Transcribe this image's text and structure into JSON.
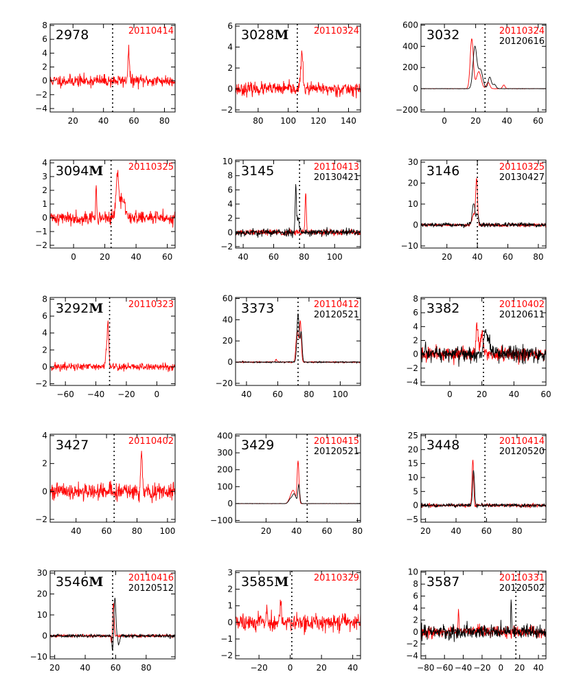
{
  "chart_data": [
    {
      "type": "line",
      "id": "2978",
      "marker": "",
      "dates": [
        {
          "text": "20110414",
          "color": "#ff0000"
        }
      ],
      "xlim": [
        5,
        87
      ],
      "ylim": [
        -4.5,
        8.2
      ],
      "xticks": [
        20,
        40,
        60,
        80
      ],
      "yticks": [
        -4,
        -2,
        0,
        2,
        4,
        6,
        8
      ],
      "vline": 46,
      "series": [
        {
          "color": "#ff0000",
          "baseline": 0,
          "noise": 0.8,
          "seed": 11,
          "peaks": [
            {
              "x": 56.5,
              "h": 4.6,
              "w": 0.5
            }
          ]
        }
      ]
    },
    {
      "type": "line",
      "id": "3028",
      "marker": "M",
      "dates": [
        {
          "text": "20110324",
          "color": "#ff0000"
        }
      ],
      "xlim": [
        65,
        148
      ],
      "ylim": [
        -2.2,
        6.2
      ],
      "xticks": [
        80,
        100,
        120,
        140
      ],
      "yticks": [
        -2,
        0,
        2,
        4,
        6
      ],
      "vline": 106,
      "series": [
        {
          "color": "#ff0000",
          "baseline": 0,
          "noise": 0.55,
          "seed": 23,
          "peaks": [
            {
              "x": 109,
              "h": 3.4,
              "w": 0.7
            }
          ]
        }
      ]
    },
    {
      "type": "line",
      "id": "3032",
      "marker": "",
      "dates": [
        {
          "text": "20110324",
          "color": "#ff0000"
        },
        {
          "text": "20120616",
          "color": "#000000"
        }
      ],
      "xlim": [
        -15,
        65
      ],
      "ylim": [
        -220,
        610
      ],
      "xticks": [
        0,
        20,
        40,
        60
      ],
      "yticks": [
        -200,
        0,
        200,
        400,
        600
      ],
      "vline": 26,
      "series": [
        {
          "color": "#ff0000",
          "baseline": 0,
          "noise": 1.5,
          "seed": 31,
          "peaks": [
            {
              "x": 17.5,
              "h": 470,
              "w": 1.0
            },
            {
              "x": 22,
              "h": 160,
              "w": 1.5
            },
            {
              "x": 28,
              "h": 60,
              "w": 1.0
            },
            {
              "x": 38,
              "h": 35,
              "w": 0.8
            }
          ]
        },
        {
          "color": "#000000",
          "baseline": 0,
          "noise": 1.5,
          "seed": 37,
          "peaks": [
            {
              "x": 19.5,
              "h": 390,
              "w": 1.2
            },
            {
              "x": 23,
              "h": 180,
              "w": 1.5
            },
            {
              "x": 29,
              "h": 110,
              "w": 1.0
            },
            {
              "x": 32,
              "h": 40,
              "w": 1.0
            }
          ]
        }
      ]
    },
    {
      "type": "line",
      "id": "3094",
      "marker": "M",
      "dates": [
        {
          "text": "20110325",
          "color": "#ff0000"
        }
      ],
      "xlim": [
        -15,
        65
      ],
      "ylim": [
        -2.2,
        4.2
      ],
      "xticks": [
        0,
        20,
        40,
        60
      ],
      "yticks": [
        -2,
        -1,
        0,
        1,
        2,
        3,
        4
      ],
      "vline": 24,
      "series": [
        {
          "color": "#ff0000",
          "baseline": 0,
          "noise": 0.45,
          "seed": 41,
          "peaks": [
            {
              "x": 14.5,
              "h": 2.3,
              "w": 0.3
            },
            {
              "x": 28,
              "h": 2.8,
              "w": 0.8
            },
            {
              "x": 31,
              "h": 1.3,
              "w": 2.0
            }
          ]
        }
      ]
    },
    {
      "type": "line",
      "id": "3145",
      "marker": "",
      "dates": [
        {
          "text": "20110413",
          "color": "#ff0000"
        },
        {
          "text": "20130421",
          "color": "#000000"
        }
      ],
      "xlim": [
        35,
        117
      ],
      "ylim": [
        -2.2,
        10.2
      ],
      "xticks": [
        40,
        60,
        80,
        100
      ],
      "yticks": [
        -2,
        0,
        2,
        4,
        6,
        8,
        10
      ],
      "vline": 77,
      "series": [
        {
          "color": "#ff0000",
          "baseline": 0,
          "noise": 0.4,
          "seed": 51,
          "peaks": [
            {
              "x": 81,
              "h": 5.6,
              "w": 0.4
            }
          ]
        },
        {
          "color": "#000000",
          "baseline": 0,
          "noise": 0.5,
          "seed": 53,
          "peaks": [
            {
              "x": 74.5,
              "h": 6.6,
              "w": 0.4
            },
            {
              "x": 76,
              "h": 2.0,
              "w": 0.8
            }
          ]
        }
      ]
    },
    {
      "type": "line",
      "id": "3146",
      "marker": "",
      "dates": [
        {
          "text": "20110325",
          "color": "#ff0000"
        },
        {
          "text": "20130427",
          "color": "#000000"
        }
      ],
      "xlim": [
        3,
        85
      ],
      "ylim": [
        -11,
        31
      ],
      "xticks": [
        20,
        40,
        60,
        80
      ],
      "yticks": [
        -10,
        0,
        10,
        20,
        30
      ],
      "vline": 40,
      "series": [
        {
          "color": "#ff0000",
          "baseline": 0,
          "noise": 0.7,
          "seed": 61,
          "peaks": [
            {
              "x": 39.5,
              "h": 22,
              "w": 0.6
            },
            {
              "x": 37.5,
              "h": 5,
              "w": 1.0
            }
          ]
        },
        {
          "color": "#000000",
          "baseline": 0,
          "noise": 0.9,
          "seed": 67,
          "peaks": [
            {
              "x": 37.5,
              "h": 10,
              "w": 0.9
            },
            {
              "x": 40,
              "h": 5,
              "w": 0.8
            }
          ]
        }
      ]
    },
    {
      "type": "line",
      "id": "3292",
      "marker": "M",
      "dates": [
        {
          "text": "20110323",
          "color": "#ff0000"
        }
      ],
      "xlim": [
        -70,
        12
      ],
      "ylim": [
        -2.2,
        8.2
      ],
      "xticks": [
        -60,
        -40,
        -20,
        0
      ],
      "yticks": [
        -2,
        0,
        2,
        4,
        6,
        8
      ],
      "vline": -31,
      "series": [
        {
          "color": "#ff0000",
          "baseline": 0,
          "noise": 0.45,
          "seed": 71,
          "peaks": [
            {
              "x": -32,
              "h": 5.0,
              "w": 0.5
            },
            {
              "x": -33,
              "h": 2.0,
              "w": 0.6
            }
          ]
        }
      ]
    },
    {
      "type": "line",
      "id": "3373",
      "marker": "",
      "dates": [
        {
          "text": "20110412",
          "color": "#ff0000"
        },
        {
          "text": "20120521",
          "color": "#000000"
        }
      ],
      "xlim": [
        33,
        113
      ],
      "ylim": [
        -22,
        61
      ],
      "xticks": [
        40,
        60,
        80,
        100
      ],
      "yticks": [
        -20,
        0,
        20,
        40,
        60
      ],
      "vline": 73,
      "series": [
        {
          "color": "#ff0000",
          "baseline": 0,
          "noise": 0.5,
          "seed": 81,
          "peaks": [
            {
              "x": 72.5,
              "h": 30,
              "w": 0.8
            },
            {
              "x": 74.5,
              "h": 38,
              "w": 0.6
            },
            {
              "x": 59,
              "h": 2.5,
              "w": 0.5
            }
          ]
        },
        {
          "color": "#000000",
          "baseline": 0,
          "noise": 0.5,
          "seed": 83,
          "peaks": [
            {
              "x": 73,
              "h": 46,
              "w": 0.7
            },
            {
              "x": 75,
              "h": 28,
              "w": 0.6
            }
          ]
        }
      ]
    },
    {
      "type": "line",
      "id": "3382",
      "marker": "",
      "dates": [
        {
          "text": "20110402",
          "color": "#ff0000"
        },
        {
          "text": "20120611",
          "color": "#000000"
        }
      ],
      "xlim": [
        -18,
        60
      ],
      "ylim": [
        -4.5,
        8.2
      ],
      "xticks": [
        0,
        20,
        40,
        60
      ],
      "yticks": [
        -4,
        -2,
        0,
        2,
        4,
        6,
        8
      ],
      "vline": 21,
      "series": [
        {
          "color": "#ff0000",
          "baseline": 0,
          "noise": 0.9,
          "seed": 91,
          "peaks": [
            {
              "x": 17,
              "h": 4.0,
              "w": 0.6
            },
            {
              "x": 20,
              "h": 3.0,
              "w": 0.8
            }
          ]
        },
        {
          "color": "#000000",
          "baseline": 0,
          "noise": 1.1,
          "seed": 97,
          "peaks": [
            {
              "x": 22,
              "h": 2.5,
              "w": 1.0
            },
            {
              "x": 24,
              "h": 1.8,
              "w": 1.5
            }
          ]
        }
      ]
    },
    {
      "type": "line",
      "id": "3427",
      "marker": "",
      "dates": [
        {
          "text": "20110402",
          "color": "#ff0000"
        }
      ],
      "xlim": [
        23,
        105
      ],
      "ylim": [
        -2.2,
        4.1
      ],
      "xticks": [
        40,
        60,
        80,
        100
      ],
      "yticks": [
        -2,
        0,
        2,
        4
      ],
      "vline": 65,
      "series": [
        {
          "color": "#ff0000",
          "baseline": 0,
          "noise": 0.55,
          "seed": 101,
          "peaks": [
            {
              "x": 83,
              "h": 3.0,
              "w": 0.5
            }
          ]
        }
      ]
    },
    {
      "type": "line",
      "id": "3429",
      "marker": "",
      "dates": [
        {
          "text": "20110415",
          "color": "#ff0000"
        },
        {
          "text": "20120521",
          "color": "#000000"
        }
      ],
      "xlim": [
        0,
        82
      ],
      "ylim": [
        -110,
        410
      ],
      "xticks": [
        20,
        40,
        60,
        80
      ],
      "yticks": [
        -100,
        0,
        100,
        200,
        300,
        400
      ],
      "vline": 47,
      "series": [
        {
          "color": "#ff0000",
          "baseline": 0,
          "noise": 0.8,
          "seed": 111,
          "peaks": [
            {
              "x": 41,
              "h": 250,
              "w": 0.6
            },
            {
              "x": 38,
              "h": 70,
              "w": 1.2
            },
            {
              "x": 36,
              "h": 30,
              "w": 1.2
            }
          ]
        },
        {
          "color": "#000000",
          "baseline": 0,
          "noise": 0.8,
          "seed": 113,
          "peaks": [
            {
              "x": 41.5,
              "h": 110,
              "w": 0.6
            },
            {
              "x": 38.5,
              "h": 55,
              "w": 1.2
            },
            {
              "x": 36,
              "h": 25,
              "w": 1.2
            }
          ]
        }
      ]
    },
    {
      "type": "line",
      "id": "3448",
      "marker": "",
      "dates": [
        {
          "text": "20110414",
          "color": "#ff0000"
        },
        {
          "text": "20120520",
          "color": "#000000"
        }
      ],
      "xlim": [
        17,
        99
      ],
      "ylim": [
        -6,
        25.5
      ],
      "xticks": [
        20,
        40,
        60,
        80
      ],
      "yticks": [
        -5,
        0,
        5,
        10,
        15,
        20,
        25
      ],
      "vline": 59,
      "series": [
        {
          "color": "#ff0000",
          "baseline": 0,
          "noise": 0.5,
          "seed": 121,
          "peaks": [
            {
              "x": 51,
              "h": 16.5,
              "w": 0.5
            }
          ]
        },
        {
          "color": "#000000",
          "baseline": 0,
          "noise": 0.6,
          "seed": 127,
          "peaks": [
            {
              "x": 51.5,
              "h": 12.5,
              "w": 0.6
            }
          ]
        }
      ]
    },
    {
      "type": "line",
      "id": "3546",
      "marker": "M",
      "dates": [
        {
          "text": "20110416",
          "color": "#ff0000"
        },
        {
          "text": "20120512",
          "color": "#000000"
        }
      ],
      "xlim": [
        17,
        99
      ],
      "ylim": [
        -11,
        31
      ],
      "xticks": [
        20,
        40,
        60,
        80
      ],
      "yticks": [
        -10,
        0,
        10,
        20,
        30
      ],
      "vline": 58,
      "series": [
        {
          "color": "#ff0000",
          "baseline": 0,
          "noise": 0.6,
          "seed": 131,
          "peaks": [
            {
              "x": 58.5,
              "h": 16,
              "w": 0.5
            },
            {
              "x": 57.5,
              "h": -5,
              "w": 0.4
            }
          ]
        },
        {
          "color": "#000000",
          "baseline": 0,
          "noise": 0.7,
          "seed": 137,
          "peaks": [
            {
              "x": 59.5,
              "h": 18,
              "w": 0.6
            },
            {
              "x": 58,
              "h": -8,
              "w": 0.4
            },
            {
              "x": 62,
              "h": -4,
              "w": 0.6
            }
          ]
        }
      ]
    },
    {
      "type": "line",
      "id": "3585",
      "marker": "M",
      "dates": [
        {
          "text": "20110329",
          "color": "#ff0000"
        }
      ],
      "xlim": [
        -35,
        45
      ],
      "ylim": [
        -2.2,
        3.1
      ],
      "xticks": [
        -20,
        0,
        20,
        40
      ],
      "yticks": [
        -2,
        -1,
        0,
        1,
        2,
        3
      ],
      "vline": 1,
      "series": [
        {
          "color": "#ff0000",
          "baseline": 0,
          "noise": 0.45,
          "seed": 141,
          "peaks": [
            {
              "x": -6,
              "h": 1.4,
              "w": 0.4
            },
            {
              "x": -15,
              "h": 1.0,
              "w": 0.4
            }
          ]
        }
      ]
    },
    {
      "type": "line",
      "id": "3587",
      "marker": "",
      "dates": [
        {
          "text": "20110331",
          "color": "#ff0000"
        },
        {
          "text": "20120502",
          "color": "#000000"
        }
      ],
      "xlim": [
        -85,
        48
      ],
      "ylim": [
        -4.5,
        10.2
      ],
      "xticks": [
        -80,
        -60,
        -40,
        -20,
        0,
        20,
        40
      ],
      "yticks": [
        -4,
        -2,
        0,
        2,
        4,
        6,
        8,
        10
      ],
      "vline": 16,
      "series": [
        {
          "color": "#ff0000",
          "baseline": 0,
          "noise": 0.8,
          "seed": 151,
          "peaks": [
            {
              "x": -45,
              "h": 3.2,
              "w": 0.5
            }
          ]
        },
        {
          "color": "#000000",
          "baseline": 0,
          "noise": 1.0,
          "seed": 157,
          "peaks": [
            {
              "x": 11,
              "h": 6.0,
              "w": 0.4
            }
          ]
        }
      ]
    }
  ]
}
